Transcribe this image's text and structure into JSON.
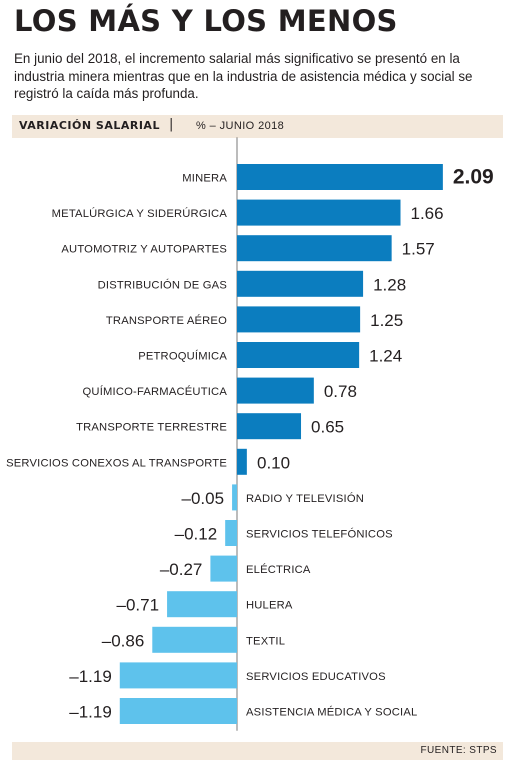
{
  "title": "LOS MÁS Y LOS MENOS",
  "subtitle": "En junio del 2018, el incremento salarial más significativo se presentó en la industria minera mientras que en la industria de asistencia médica y social se registró la caída más profunda.",
  "header": {
    "label": "VARIACIÓN SALARIAL",
    "separator": "|",
    "unit": "% – JUNIO 2018"
  },
  "source": "FUENTE: STPS",
  "colors": {
    "positive": "#0b7dbf",
    "negative": "#5ec2ec",
    "band": "#f3e8db",
    "text": "#231f20"
  },
  "chart_data": {
    "type": "bar",
    "orientation": "horizontal",
    "categories": [
      "MINERA",
      "METALÚRGICA Y SIDERÚRGICA",
      "AUTOMOTRIZ Y AUTOPARTES",
      "DISTRIBUCIÓN DE GAS",
      "TRANSPORTE AÉREO",
      "PETROQUÍMICA",
      "QUÍMICO-FARMACÉUTICA",
      "TRANSPORTE TERRESTRE",
      "SERVICIOS CONEXOS AL TRANSPORTE",
      "RADIO Y TELEVISIÓN",
      "SERVICIOS TELEFÓNICOS",
      "ELÉCTRICA",
      "HULERA",
      "TEXTIL",
      "SERVICIOS EDUCATIVOS",
      "ASISTENCIA MÉDICA Y SOCIAL"
    ],
    "values": [
      2.09,
      1.66,
      1.57,
      1.28,
      1.25,
      1.24,
      0.78,
      0.65,
      0.1,
      -0.05,
      -0.12,
      -0.27,
      -0.71,
      -0.86,
      -1.19,
      -1.19
    ],
    "value_labels": [
      "2.09",
      "1.66",
      "1.57",
      "1.28",
      "1.25",
      "1.24",
      "0.78",
      "0.65",
      "0.10",
      "–0.05",
      "–0.12",
      "–0.27",
      "–0.71",
      "–0.86",
      "–1.19",
      "–1.19"
    ],
    "grid": false,
    "legend": "none"
  }
}
